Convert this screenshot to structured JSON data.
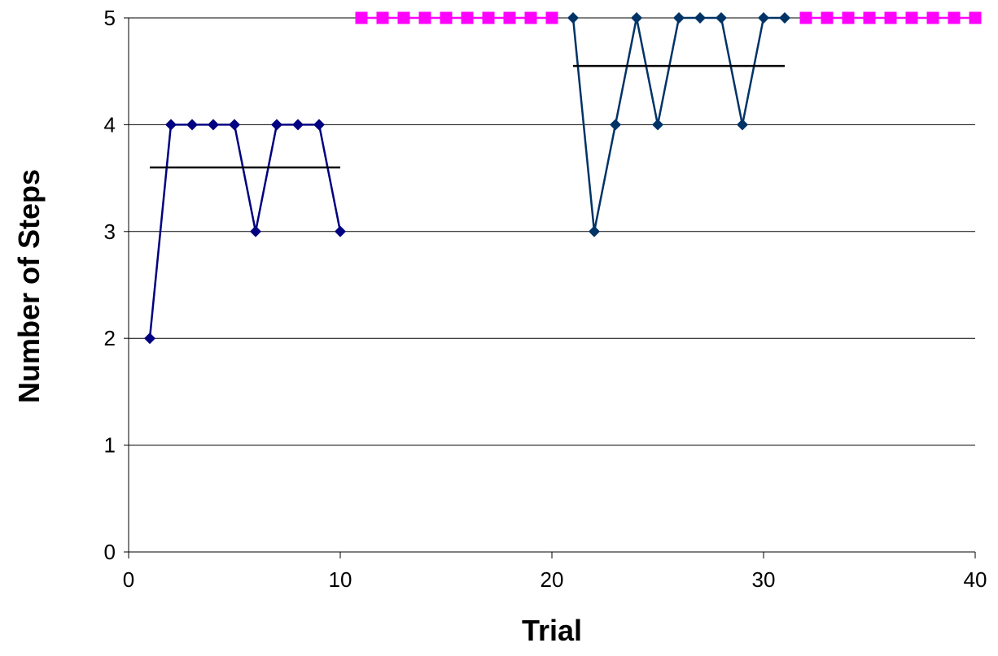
{
  "chart_data": {
    "type": "line",
    "xlabel": "Trial",
    "ylabel": "Number of Steps",
    "xlim": [
      0,
      40
    ],
    "ylim": [
      0,
      5
    ],
    "x_ticks": [
      "0",
      "10",
      "20",
      "30",
      "40"
    ],
    "y_ticks": [
      "0",
      "1",
      "2",
      "3",
      "4",
      "5"
    ],
    "grid": "horizontal",
    "legend": "none",
    "series": [
      {
        "marker": "diamond",
        "color": "#000080",
        "x": [
          1,
          2,
          3,
          4,
          5,
          6,
          7,
          8,
          9,
          10
        ],
        "y": [
          2,
          4,
          4,
          4,
          4,
          3,
          4,
          4,
          4,
          3
        ]
      },
      {
        "marker": "square",
        "color": "#FF00FF",
        "x": [
          11,
          12,
          13,
          14,
          15,
          16,
          17,
          18,
          19,
          20
        ],
        "y": [
          5,
          5,
          5,
          5,
          5,
          5,
          5,
          5,
          5,
          5
        ]
      },
      {
        "marker": "diamond",
        "color": "#003366",
        "x": [
          21,
          22,
          23,
          24,
          25,
          26,
          27,
          28,
          29,
          30,
          31
        ],
        "y": [
          5,
          3,
          4,
          5,
          4,
          5,
          5,
          5,
          4,
          5,
          5
        ]
      },
      {
        "marker": "square",
        "color": "#FF00FF",
        "x": [
          32,
          33,
          34,
          35,
          36,
          37,
          38,
          39,
          40
        ],
        "y": [
          5,
          5,
          5,
          5,
          5,
          5,
          5,
          5,
          5
        ]
      },
      {
        "marker": "none",
        "color": "#000000",
        "x": [
          1,
          10
        ],
        "y": [
          3.6,
          3.6
        ]
      },
      {
        "marker": "none",
        "color": "#000000",
        "x": [
          21,
          31
        ],
        "y": [
          4.55,
          4.55
        ]
      }
    ]
  }
}
